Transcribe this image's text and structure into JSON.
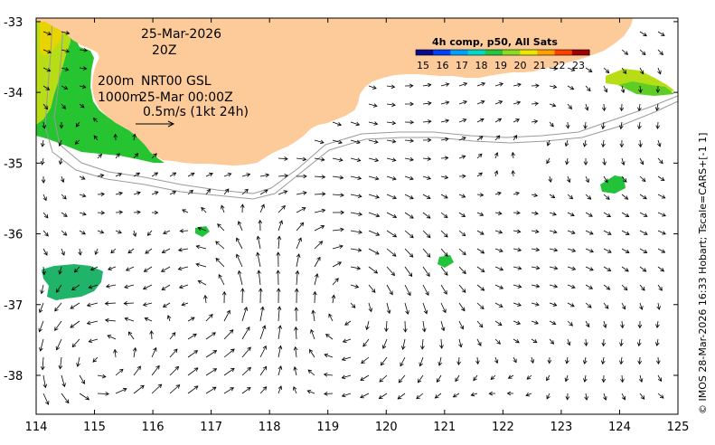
{
  "map": {
    "date": "25-Mar-2026",
    "time": "20Z",
    "contour_label_1": "200m",
    "contour_label_2": "1000m",
    "product_label": "NRT00 GSL",
    "product_time": "25-Mar 00:00Z",
    "scale_label": "0.5m/s (1kt 24h)",
    "legend_title": "4h comp, p50, All Sats",
    "legend_ticks": [
      "15",
      "16",
      "17",
      "18",
      "19",
      "20",
      "21",
      "22",
      "23"
    ],
    "legend_colors": [
      "#0a0a8a",
      "#0040ff",
      "#00a0ff",
      "#00d8c8",
      "#22c840",
      "#88dd22",
      "#e8e800",
      "#ffa000",
      "#ff4000",
      "#a00000"
    ],
    "credit": "© IMOS 28-Mar-2026 16:33 Hobart; Tscale=CARS+[-1 1]",
    "x_ticks": [
      "114",
      "115",
      "116",
      "117",
      "118",
      "119",
      "120",
      "121",
      "122",
      "123",
      "124",
      "125"
    ],
    "y_ticks": [
      "-33",
      "-34",
      "-35",
      "-36",
      "-37",
      "-38"
    ],
    "xlim": [
      114,
      125
    ],
    "ylim": [
      -38.55,
      -32.95
    ],
    "land_color": "#fdcb99",
    "coast_color": "#000000",
    "contour_color": "#9a9a9a"
  }
}
